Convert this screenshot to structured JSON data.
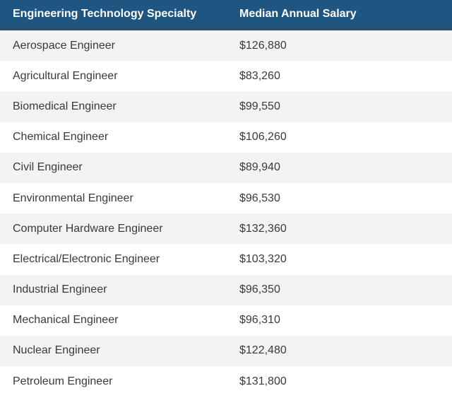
{
  "table": {
    "headers": [
      "Engineering Technology Specialty",
      "Median Annual Salary"
    ],
    "rows": [
      [
        "Aerospace Engineer",
        "$126,880"
      ],
      [
        "Agricultural Engineer",
        "$83,260"
      ],
      [
        "Biomedical Engineer",
        "$99,550"
      ],
      [
        "Chemical Engineer",
        "$106,260"
      ],
      [
        "Civil Engineer",
        "$89,940"
      ],
      [
        "Environmental Engineer",
        "$96,530"
      ],
      [
        "Computer Hardware Engineer",
        "$132,360"
      ],
      [
        "Electrical/Electronic Engineer",
        "$103,320"
      ],
      [
        "Industrial Engineer",
        "$96,350"
      ],
      [
        "Mechanical Engineer",
        "$96,310"
      ],
      [
        "Nuclear Engineer",
        "$122,480"
      ],
      [
        "Petroleum Engineer",
        "$131,800"
      ]
    ]
  },
  "colors": {
    "header_background": "#1f5581",
    "header_text": "#ffffff",
    "row_alt_background": "#f3f3f3",
    "body_text": "#3a3a3a"
  }
}
